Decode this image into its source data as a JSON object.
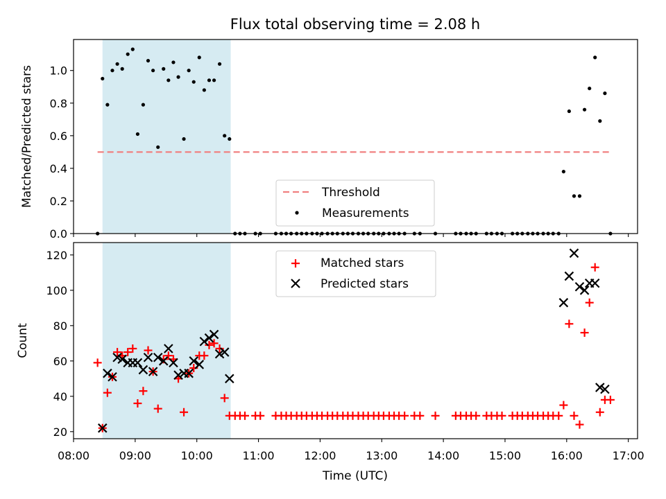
{
  "title": "Flux total observing time = 2.08 h",
  "chart_data": [
    {
      "type": "scatter",
      "ylabel": "Matched/Predicted stars",
      "xlim": [
        8.0,
        17.15
      ],
      "ylim": [
        0.0,
        1.19
      ],
      "y_ticks": [
        0.0,
        0.2,
        0.4,
        0.6,
        0.8,
        1.0
      ],
      "y_tick_labels": [
        "0.0",
        "0.2",
        "0.4",
        "0.6",
        "0.8",
        "1.0"
      ],
      "shaded_region": {
        "x_start": 8.47,
        "x_end": 10.55,
        "color": "#add8e6"
      },
      "threshold": {
        "name": "Threshold",
        "value": 0.5,
        "x_start": 8.39,
        "x_end": 16.72,
        "color": "#f08080"
      },
      "series": [
        {
          "name": "Measurements",
          "marker": "dot",
          "color": "#000000",
          "x": [
            8.39,
            8.47,
            8.55,
            8.63,
            8.71,
            8.79,
            8.88,
            8.96,
            9.04,
            9.13,
            9.21,
            9.29,
            9.37,
            9.46,
            9.54,
            9.62,
            9.7,
            9.79,
            9.87,
            9.95,
            10.04,
            10.12,
            10.2,
            10.28,
            10.37,
            10.45,
            10.53,
            10.62,
            10.7,
            10.78,
            10.95,
            11.03,
            11.28,
            11.37,
            11.45,
            11.53,
            11.62,
            11.7,
            11.78,
            11.87,
            11.95,
            12.03,
            12.12,
            12.2,
            12.28,
            12.37,
            12.45,
            12.53,
            12.62,
            12.7,
            12.78,
            12.87,
            12.95,
            13.03,
            13.12,
            13.2,
            13.28,
            13.37,
            13.53,
            13.62,
            13.87,
            14.2,
            14.28,
            14.37,
            14.45,
            14.53,
            14.7,
            14.78,
            14.87,
            14.95,
            15.12,
            15.2,
            15.28,
            15.37,
            15.45,
            15.53,
            15.62,
            15.7,
            15.78,
            15.87,
            15.95,
            16.04,
            16.12,
            16.21,
            16.29,
            16.37,
            16.46,
            16.54,
            16.62,
            16.71
          ],
          "y": [
            0.0,
            0.95,
            0.79,
            1.0,
            1.04,
            1.01,
            1.1,
            1.13,
            0.61,
            0.79,
            1.06,
            1.0,
            0.53,
            1.01,
            0.94,
            1.05,
            0.96,
            0.58,
            1.0,
            0.93,
            1.08,
            0.88,
            0.94,
            0.94,
            1.04,
            0.6,
            0.58,
            0.0,
            0.0,
            0.0,
            0.0,
            0.0,
            0.0,
            0.0,
            0.0,
            0.0,
            0.0,
            0.0,
            0.0,
            0.0,
            0.0,
            0.0,
            0.0,
            0.0,
            0.0,
            0.0,
            0.0,
            0.0,
            0.0,
            0.0,
            0.0,
            0.0,
            0.0,
            0.0,
            0.0,
            0.0,
            0.0,
            0.0,
            0.0,
            0.0,
            0.0,
            0.0,
            0.0,
            0.0,
            0.0,
            0.0,
            0.0,
            0.0,
            0.0,
            0.0,
            0.0,
            0.0,
            0.0,
            0.0,
            0.0,
            0.0,
            0.0,
            0.0,
            0.0,
            0.0,
            0.38,
            0.75,
            0.23,
            0.23,
            0.76,
            0.89,
            1.08,
            0.69,
            0.86,
            0.0
          ]
        }
      ],
      "legend": {
        "position": "lower center"
      }
    },
    {
      "type": "scatter",
      "xlabel": "Time (UTC)",
      "ylabel": "Count",
      "xlim": [
        8.0,
        17.15
      ],
      "ylim": [
        16.0,
        127.0
      ],
      "x_ticks": [
        8,
        9,
        10,
        11,
        12,
        13,
        14,
        15,
        16,
        17
      ],
      "x_tick_labels": [
        "08:00",
        "09:00",
        "10:00",
        "11:00",
        "12:00",
        "13:00",
        "14:00",
        "15:00",
        "16:00",
        "17:00"
      ],
      "y_ticks": [
        20,
        40,
        60,
        80,
        100,
        120
      ],
      "y_tick_labels": [
        "20",
        "40",
        "60",
        "80",
        "100",
        "120"
      ],
      "shaded_region": {
        "x_start": 8.47,
        "x_end": 10.55,
        "color": "#add8e6"
      },
      "series": [
        {
          "name": "Matched stars",
          "marker": "plus",
          "color": "#ff0000",
          "x": [
            8.39,
            8.47,
            8.55,
            8.63,
            8.71,
            8.79,
            8.88,
            8.96,
            9.04,
            9.13,
            9.21,
            9.29,
            9.37,
            9.46,
            9.54,
            9.62,
            9.7,
            9.79,
            9.87,
            9.95,
            10.04,
            10.12,
            10.2,
            10.28,
            10.37,
            10.45,
            10.53,
            10.62,
            10.7,
            10.78,
            10.95,
            11.03,
            11.28,
            11.37,
            11.45,
            11.53,
            11.62,
            11.7,
            11.78,
            11.87,
            11.95,
            12.03,
            12.12,
            12.2,
            12.28,
            12.37,
            12.45,
            12.53,
            12.62,
            12.7,
            12.78,
            12.87,
            12.95,
            13.03,
            13.12,
            13.2,
            13.28,
            13.37,
            13.53,
            13.62,
            13.87,
            14.2,
            14.28,
            14.37,
            14.45,
            14.53,
            14.7,
            14.78,
            14.87,
            14.95,
            15.12,
            15.2,
            15.28,
            15.37,
            15.45,
            15.53,
            15.62,
            15.7,
            15.78,
            15.87,
            15.95,
            16.04,
            16.12,
            16.21,
            16.29,
            16.37,
            16.46,
            16.54,
            16.62,
            16.71
          ],
          "y": [
            59,
            22,
            42,
            51,
            65,
            63,
            65,
            67,
            36,
            43,
            66,
            54,
            33,
            61,
            63,
            61,
            50,
            31,
            53,
            56,
            63,
            63,
            69,
            70,
            67,
            39,
            29,
            29,
            29,
            29,
            29,
            29,
            29,
            29,
            29,
            29,
            29,
            29,
            29,
            29,
            29,
            29,
            29,
            29,
            29,
            29,
            29,
            29,
            29,
            29,
            29,
            29,
            29,
            29,
            29,
            29,
            29,
            29,
            29,
            29,
            29,
            29,
            29,
            29,
            29,
            29,
            29,
            29,
            29,
            29,
            29,
            29,
            29,
            29,
            29,
            29,
            29,
            29,
            29,
            29,
            35,
            81,
            29,
            24,
            76,
            93,
            113,
            31,
            38,
            38
          ]
        },
        {
          "name": "Predicted stars",
          "marker": "x",
          "color": "#000000",
          "x": [
            8.47,
            8.55,
            8.63,
            8.71,
            8.79,
            8.88,
            8.96,
            9.04,
            9.13,
            9.21,
            9.29,
            9.37,
            9.46,
            9.54,
            9.62,
            9.7,
            9.79,
            9.87,
            9.95,
            10.04,
            10.12,
            10.2,
            10.28,
            10.37,
            10.45,
            10.53,
            15.95,
            16.04,
            16.12,
            16.21,
            16.29,
            16.37,
            16.46,
            16.54,
            16.62
          ],
          "y": [
            22,
            53,
            51,
            62,
            61,
            59,
            59,
            59,
            55,
            62,
            54,
            62,
            60,
            67,
            59,
            52,
            53,
            53,
            60,
            58,
            71,
            73,
            75,
            64,
            65,
            50,
            93,
            108,
            121,
            102,
            100,
            104,
            104,
            45,
            44
          ]
        }
      ],
      "legend": {
        "position": "upper center"
      }
    }
  ]
}
